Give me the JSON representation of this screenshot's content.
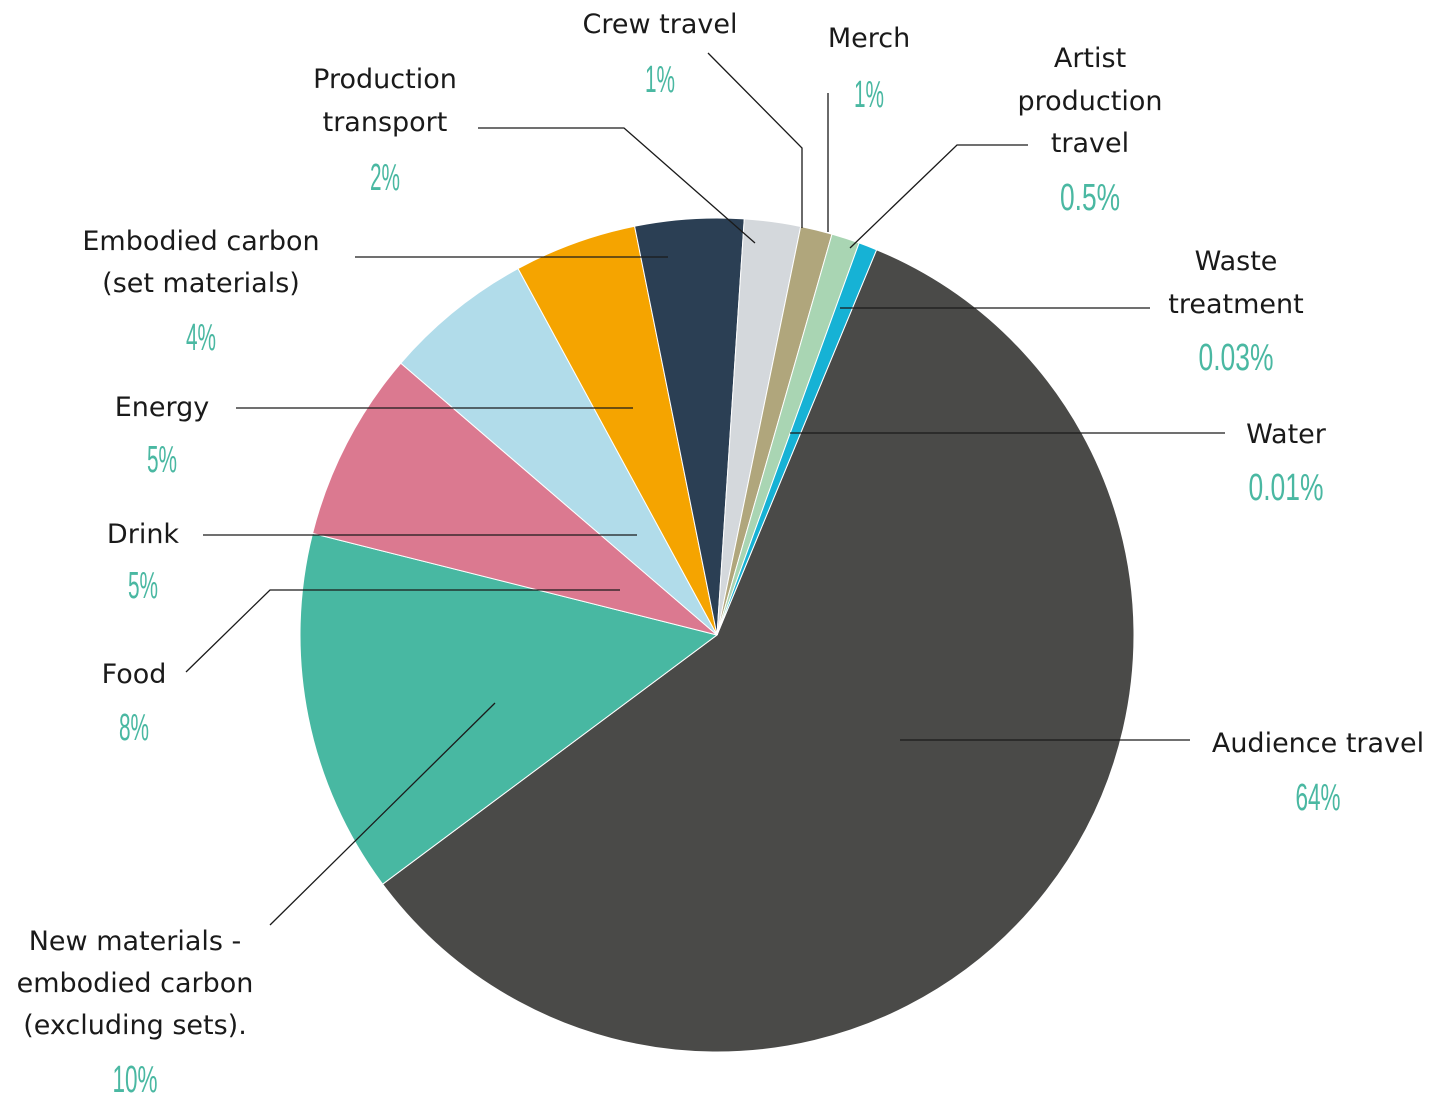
{
  "chart_data": {
    "type": "pie",
    "slices": [
      {
        "name": [
          "Audience travel"
        ],
        "value": 64,
        "label": "64%",
        "color": "#4a4a48"
      },
      {
        "name": [
          "New materials -",
          "embodied carbon",
          "(excluding sets)."
        ],
        "value": 10,
        "label": "10%",
        "color": "#48b8a2"
      },
      {
        "name": [
          "Food"
        ],
        "value": 8,
        "label": "8%",
        "color": "#db7990"
      },
      {
        "name": [
          "Drink"
        ],
        "value": 5,
        "label": "5%",
        "color": "#b1dcea"
      },
      {
        "name": [
          "Energy"
        ],
        "value": 5,
        "label": "5%",
        "color": "#f5a400"
      },
      {
        "name": [
          "Embodied carbon",
          "(set materials)"
        ],
        "value": 4,
        "label": "4%",
        "color": "#2b3f54"
      },
      {
        "name": [
          "Production",
          "transport"
        ],
        "value": 2,
        "label": "2%",
        "color": "#d4d8dc"
      },
      {
        "name": [
          "Crew travel"
        ],
        "value": 1,
        "label": "1%",
        "color": "#b0a67c"
      },
      {
        "name": [
          "Merch"
        ],
        "value": 1,
        "label": "1%",
        "color": "#a9d5b3"
      },
      {
        "name": [
          "Artist",
          "production",
          "travel"
        ],
        "value": 0.5,
        "label": "0.5%",
        "color": "#16b2d5"
      },
      {
        "name": [
          "Waste",
          "treatment"
        ],
        "value": 0.03,
        "label": "0.03%",
        "color": "#3a3a3a"
      },
      {
        "name": [
          "Water"
        ],
        "value": 0.01,
        "label": "0.01%",
        "color": "#3a3a3a"
      }
    ],
    "colors": {
      "label_text": "#1a1a1a",
      "percent_text": "#4ab8a2",
      "leader_line": "#1a1a1a"
    }
  }
}
